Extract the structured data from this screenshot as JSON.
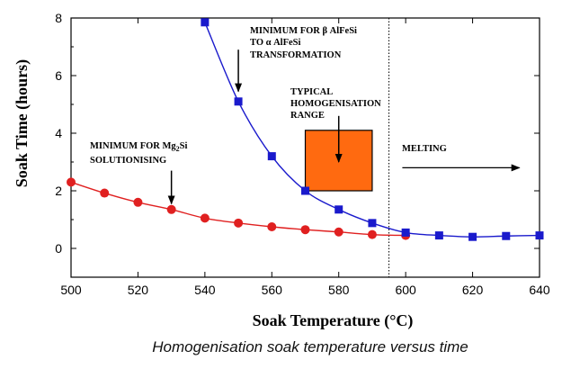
{
  "chart_data": {
    "type": "line",
    "xlabel": "Soak Temperature (°C)",
    "ylabel": "Soak Time (hours)",
    "caption": "Homogenisation soak temperature versus time",
    "xlim": [
      500,
      640
    ],
    "ylim": [
      -1,
      8
    ],
    "xticks": [
      500,
      520,
      540,
      560,
      580,
      600,
      620,
      640
    ],
    "yticks": [
      0,
      2,
      4,
      6,
      8
    ],
    "grid": false,
    "melting_temperature": 595,
    "series": [
      {
        "color": "#e02020",
        "marker": "circle",
        "x": [
          500,
          510,
          520,
          530,
          540,
          550,
          560,
          570,
          580,
          590,
          600
        ],
        "y": [
          2.3,
          1.92,
          1.6,
          1.35,
          1.05,
          0.88,
          0.75,
          0.65,
          0.57,
          0.48,
          0.45
        ]
      },
      {
        "color": "#1a1acc",
        "marker": "square",
        "x": [
          540,
          550,
          560,
          570,
          580,
          590,
          600,
          610,
          620,
          630,
          640
        ],
        "y": [
          7.85,
          5.1,
          3.2,
          2.0,
          1.35,
          0.88,
          0.55,
          0.45,
          0.4,
          0.43,
          0.45
        ]
      }
    ],
    "range_box": {
      "x": [
        570,
        590
      ],
      "y": [
        2.0,
        4.1
      ],
      "color": "#ff6a10"
    },
    "annotations": {
      "mg2si": {
        "line1_pre": "MINIMUM FOR Mg",
        "line1_sub": "2",
        "line1_post": "Si",
        "line2": "SOLUTIONISING",
        "arrow_x": 530,
        "arrow_from_y": 2.7,
        "arrow_to_y": 1.55
      },
      "alfesi": {
        "line1": "MINIMUM FOR β AlFeSi",
        "line2": "TO α AlFeSi",
        "line3": "TRANSFORMATION",
        "arrow_x": 550,
        "arrow_from_y": 6.9,
        "arrow_to_y": 5.45
      },
      "homogenisation": {
        "line1": "TYPICAL",
        "line2": "HOMOGENISATION",
        "line3": "RANGE",
        "arrow_x": 580,
        "arrow_from_y": 4.6,
        "arrow_to_y": 3.0
      },
      "melting": {
        "label": "MELTING",
        "arrow_from_x": 599,
        "arrow_to_x": 634,
        "arrow_y": 2.8
      }
    }
  }
}
